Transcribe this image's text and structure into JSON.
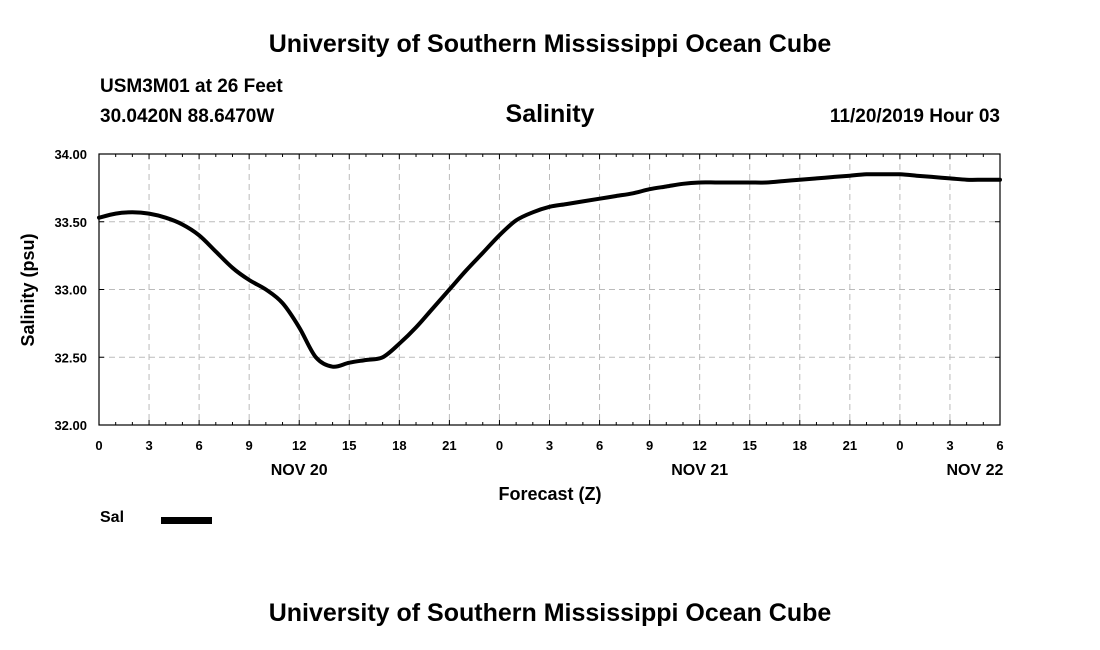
{
  "header": {
    "title": "University of Southern Mississippi Ocean Cube",
    "station": "USM3M01 at 26 Feet",
    "coords": "30.0420N 88.6470W",
    "timestamp": "11/20/2019 Hour 03"
  },
  "footer": {
    "title": "University of Southern Mississippi Ocean Cube"
  },
  "chart_data": {
    "type": "line",
    "title": "Salinity",
    "xlabel": "Forecast (Z)",
    "ylabel": "Salinity (psu)",
    "ylim": [
      32.0,
      34.0
    ],
    "xlim": [
      0,
      54
    ],
    "yticks": [
      "32.00",
      "32.50",
      "33.00",
      "33.50",
      "34.00"
    ],
    "xticks": [
      "0",
      "3",
      "6",
      "9",
      "12",
      "15",
      "18",
      "21",
      "0",
      "3",
      "6",
      "9",
      "12",
      "15",
      "18",
      "21",
      "0",
      "3",
      "6"
    ],
    "day_labels": [
      {
        "label": "NOV 20",
        "hour": 12
      },
      {
        "label": "NOV 21",
        "hour": 36
      },
      {
        "label": "NOV 22",
        "hour": 52.5
      }
    ],
    "grid": true,
    "legend": {
      "placement": "bottom-left",
      "entries": [
        "Sal"
      ]
    },
    "colors": {
      "line": "#000000",
      "grid": "#bbbbbb"
    },
    "series": [
      {
        "name": "Sal",
        "x": [
          0,
          1,
          2,
          3,
          4,
          5,
          6,
          7,
          8,
          9,
          10,
          11,
          12,
          13,
          14,
          15,
          16,
          17,
          18,
          19,
          20,
          21,
          22,
          23,
          24,
          25,
          26,
          27,
          28,
          29,
          30,
          31,
          32,
          33,
          34,
          35,
          36,
          37,
          38,
          39,
          40,
          41,
          42,
          43,
          44,
          45,
          46,
          47,
          48,
          49,
          50,
          51,
          52,
          53,
          54
        ],
        "values": [
          33.53,
          33.56,
          33.57,
          33.56,
          33.53,
          33.48,
          33.4,
          33.28,
          33.16,
          33.07,
          33.0,
          32.9,
          32.72,
          32.5,
          32.43,
          32.46,
          32.48,
          32.5,
          32.6,
          32.72,
          32.86,
          33.0,
          33.14,
          33.27,
          33.4,
          33.51,
          33.57,
          33.61,
          33.63,
          33.65,
          33.67,
          33.69,
          33.71,
          33.74,
          33.76,
          33.78,
          33.79,
          33.79,
          33.79,
          33.79,
          33.79,
          33.8,
          33.81,
          33.82,
          33.83,
          33.84,
          33.85,
          33.85,
          33.85,
          33.84,
          33.83,
          33.82,
          33.81,
          33.81,
          33.81
        ]
      }
    ]
  }
}
